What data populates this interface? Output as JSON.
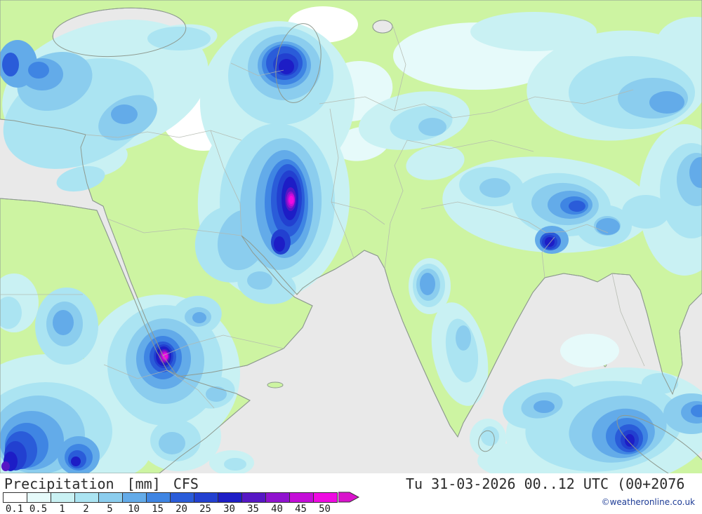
{
  "footer": {
    "parameter": "Precipitation",
    "unit": "[mm]",
    "model": "CFS",
    "valid_time": "Tu 31-03-2026 00..12 UTC (00+2076",
    "copyright": "©weatheronline.co.uk"
  },
  "legend": {
    "values": [
      "0.1",
      "0.5",
      "1",
      "2",
      "5",
      "10",
      "15",
      "20",
      "25",
      "30",
      "35",
      "40",
      "45",
      "50"
    ],
    "colors": [
      "#ffffff",
      "#e6fafa",
      "#c9f1f3",
      "#abe4f2",
      "#8bcdee",
      "#63abe9",
      "#3f85e3",
      "#2a5cd9",
      "#2240d0",
      "#1d1dc6",
      "#5617c5",
      "#9012cf",
      "#c40dd8",
      "#ef0ae2"
    ],
    "arrow_color": "#d912cc"
  },
  "map": {
    "colors": {
      "sea": "#e9e9e9",
      "land": "#cdf4a2",
      "coastline": "#8e9a90"
    }
  }
}
